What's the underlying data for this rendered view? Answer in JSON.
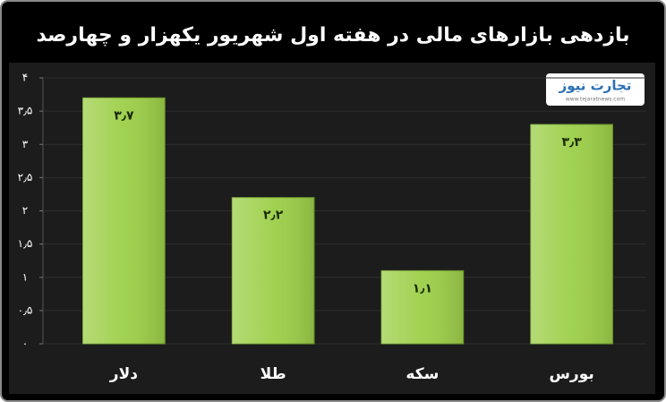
{
  "chart_data": {
    "type": "bar",
    "title": "بازدهی بازارهای مالی در هفته اول شهریور یکهزار و چهارصد",
    "watermark": {
      "name": "تجارت نیوز",
      "url": "www.tejaratnews.com"
    },
    "categories": [
      "دلار",
      "طلا",
      "سکه",
      "بورس"
    ],
    "values": [
      3.7,
      2.2,
      1.1,
      3.3
    ],
    "value_labels": [
      "۳٫۷",
      "۲٫۲",
      "۱٫۱",
      "۳٫۳"
    ],
    "color": "#9ccf48",
    "ylim": [
      0,
      4
    ],
    "yticks": [
      {
        "value": 0,
        "label": "۰"
      },
      {
        "value": 0.5,
        "label": "۰٫۵"
      },
      {
        "value": 1,
        "label": "۱"
      },
      {
        "value": 1.5,
        "label": "۱٫۵"
      },
      {
        "value": 2,
        "label": "۲"
      },
      {
        "value": 2.5,
        "label": "۲٫۵"
      },
      {
        "value": 3,
        "label": "۳"
      },
      {
        "value": 3.5,
        "label": "۳٫۵"
      },
      {
        "value": 4,
        "label": "۴"
      }
    ],
    "grid": true
  }
}
